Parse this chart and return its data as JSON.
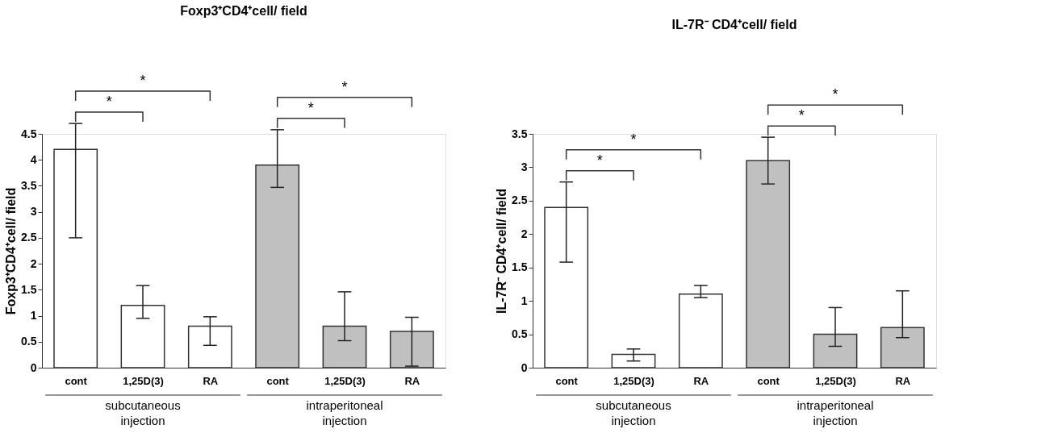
{
  "chart_data": [
    {
      "type": "bar",
      "title": "Foxp3⁺CD4⁺cell/ field",
      "ylabel": "Foxp3⁺CD4⁺cell/ field",
      "categories": [
        "cont",
        "1,25D(3)",
        "RA",
        "cont",
        "1,25D(3)",
        "RA"
      ],
      "values": [
        4.2,
        1.2,
        0.8,
        3.9,
        0.8,
        0.7
      ],
      "colors": [
        "#ffffff",
        "#ffffff",
        "#ffffff",
        "#c0c0c0",
        "#c0c0c0",
        "#c0c0c0"
      ],
      "errors": [
        [
          2.5,
          4.7
        ],
        [
          0.95,
          1.58
        ],
        [
          0.43,
          0.98
        ],
        [
          3.47,
          4.58
        ],
        [
          0.52,
          1.46
        ],
        [
          0.03,
          0.97
        ]
      ],
      "ylim": [
        0,
        4.5
      ],
      "yticks": [
        0,
        0.5,
        1,
        1.5,
        2,
        2.5,
        3,
        3.5,
        4,
        4.5
      ],
      "grid": false,
      "annotations": [
        "*",
        "*",
        "*",
        "*",
        "subcutaneous injection",
        "intraperitoneal injection"
      ]
    },
    {
      "type": "bar",
      "title": "IL-7R⁻ CD4⁺cell/ field",
      "ylabel": "IL-7R⁻ CD4⁺cell/ field",
      "categories": [
        "cont",
        "1,25D(3)",
        "RA",
        "cont",
        "1,25D(3)",
        "RA"
      ],
      "values": [
        2.4,
        0.2,
        1.1,
        3.1,
        0.5,
        0.6
      ],
      "colors": [
        "#ffffff",
        "#ffffff",
        "#ffffff",
        "#c0c0c0",
        "#c0c0c0",
        "#c0c0c0"
      ],
      "errors": [
        [
          1.58,
          2.78
        ],
        [
          0.1,
          0.28
        ],
        [
          1.05,
          1.23
        ],
        [
          2.75,
          3.45
        ],
        [
          0.32,
          0.9
        ],
        [
          0.45,
          1.15
        ]
      ],
      "ylim": [
        0,
        3.5
      ],
      "yticks": [
        0,
        0.5,
        1,
        1.5,
        2,
        2.5,
        3,
        3.5
      ],
      "grid": false,
      "annotations": [
        "*",
        "*",
        "*",
        "*",
        "subcutaneous injection",
        "intraperitoneal injection"
      ]
    }
  ]
}
